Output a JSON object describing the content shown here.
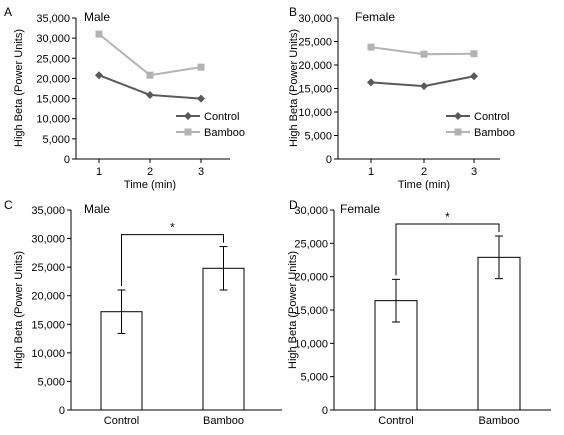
{
  "chart_data": [
    {
      "id": "A",
      "panel_label": "A",
      "type": "line",
      "title": "Male",
      "xlabel": "Time (min)",
      "ylabel": "High Beta (Power Units)",
      "x": [
        1,
        2,
        3
      ],
      "ylim": [
        0,
        35000
      ],
      "y_ticks": [
        "0",
        "5,000",
        "10,000",
        "15,000",
        "20,000",
        "25,000",
        "30,000",
        "35,000"
      ],
      "x_ticks": [
        "1",
        "2",
        "3"
      ],
      "legend_position": "bottom-right",
      "series": [
        {
          "name": "Control",
          "values": [
            20800,
            15900,
            15000
          ],
          "color": "#595959",
          "marker": "diamond"
        },
        {
          "name": "Bamboo",
          "values": [
            31000,
            20800,
            22800
          ],
          "color": "#b3b3b3",
          "marker": "square"
        }
      ]
    },
    {
      "id": "B",
      "panel_label": "B",
      "type": "line",
      "title": "Female",
      "xlabel": "Time (min)",
      "ylabel": "High Beta (Power Units)",
      "x": [
        1,
        2,
        3
      ],
      "ylim": [
        0,
        30000
      ],
      "y_ticks": [
        "0",
        "5,000",
        "10,000",
        "15,000",
        "20,000",
        "25,000",
        "30,000"
      ],
      "x_ticks": [
        "1",
        "2",
        "3"
      ],
      "legend_position": "bottom-right",
      "series": [
        {
          "name": "Control",
          "values": [
            16300,
            15500,
            17600
          ],
          "color": "#595959",
          "marker": "diamond"
        },
        {
          "name": "Bamboo",
          "values": [
            23800,
            22300,
            22400
          ],
          "color": "#b3b3b3",
          "marker": "square"
        }
      ]
    },
    {
      "id": "C",
      "panel_label": "C",
      "type": "bar",
      "title": "Male",
      "xlabel": "",
      "ylabel": "High Beta (Power Units)",
      "categories": [
        "Control",
        "Bamboo"
      ],
      "values": [
        17200,
        24800
      ],
      "errors": [
        3800,
        3800
      ],
      "ylim": [
        0,
        35000
      ],
      "y_ticks": [
        "0",
        "5,000",
        "10,000",
        "15,000",
        "20,000",
        "25,000",
        "30,000",
        "35,000"
      ],
      "significance": "*"
    },
    {
      "id": "D",
      "panel_label": "D",
      "type": "bar",
      "title": "Female",
      "xlabel": "",
      "ylabel": "High Beta (Power Units)",
      "categories": [
        "Control",
        "Bamboo"
      ],
      "values": [
        16400,
        22900
      ],
      "errors": [
        3200,
        3200
      ],
      "ylim": [
        0,
        30000
      ],
      "y_ticks": [
        "0",
        "5,000",
        "10,000",
        "15,000",
        "20,000",
        "25,000",
        "30,000"
      ],
      "significance": "*"
    }
  ]
}
